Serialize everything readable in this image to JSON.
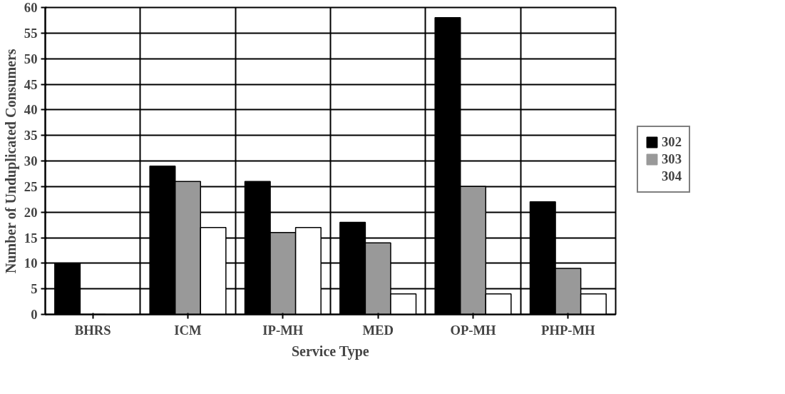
{
  "chart_data": {
    "type": "bar",
    "xlabel": "Service Type",
    "ylabel": "Number of Unduplicated Consumers",
    "categories": [
      "BHRS",
      "ICM",
      "IP-MH",
      "MED",
      "OP-MH",
      "PHP-MH"
    ],
    "series": [
      {
        "name": "302",
        "color": "#000000",
        "values": [
          10,
          29,
          26,
          18,
          58,
          22
        ]
      },
      {
        "name": "303",
        "color": "#999999",
        "values": [
          0,
          26,
          16,
          14,
          25,
          9
        ]
      },
      {
        "name": "304",
        "color": "#ffffff",
        "values": [
          0,
          17,
          17,
          4,
          4,
          4
        ]
      }
    ],
    "ylim": [
      0,
      60
    ],
    "yticks": [
      0,
      5,
      10,
      15,
      20,
      25,
      30,
      35,
      40,
      45,
      50,
      55,
      60
    ],
    "grid": true,
    "legend": "right"
  }
}
